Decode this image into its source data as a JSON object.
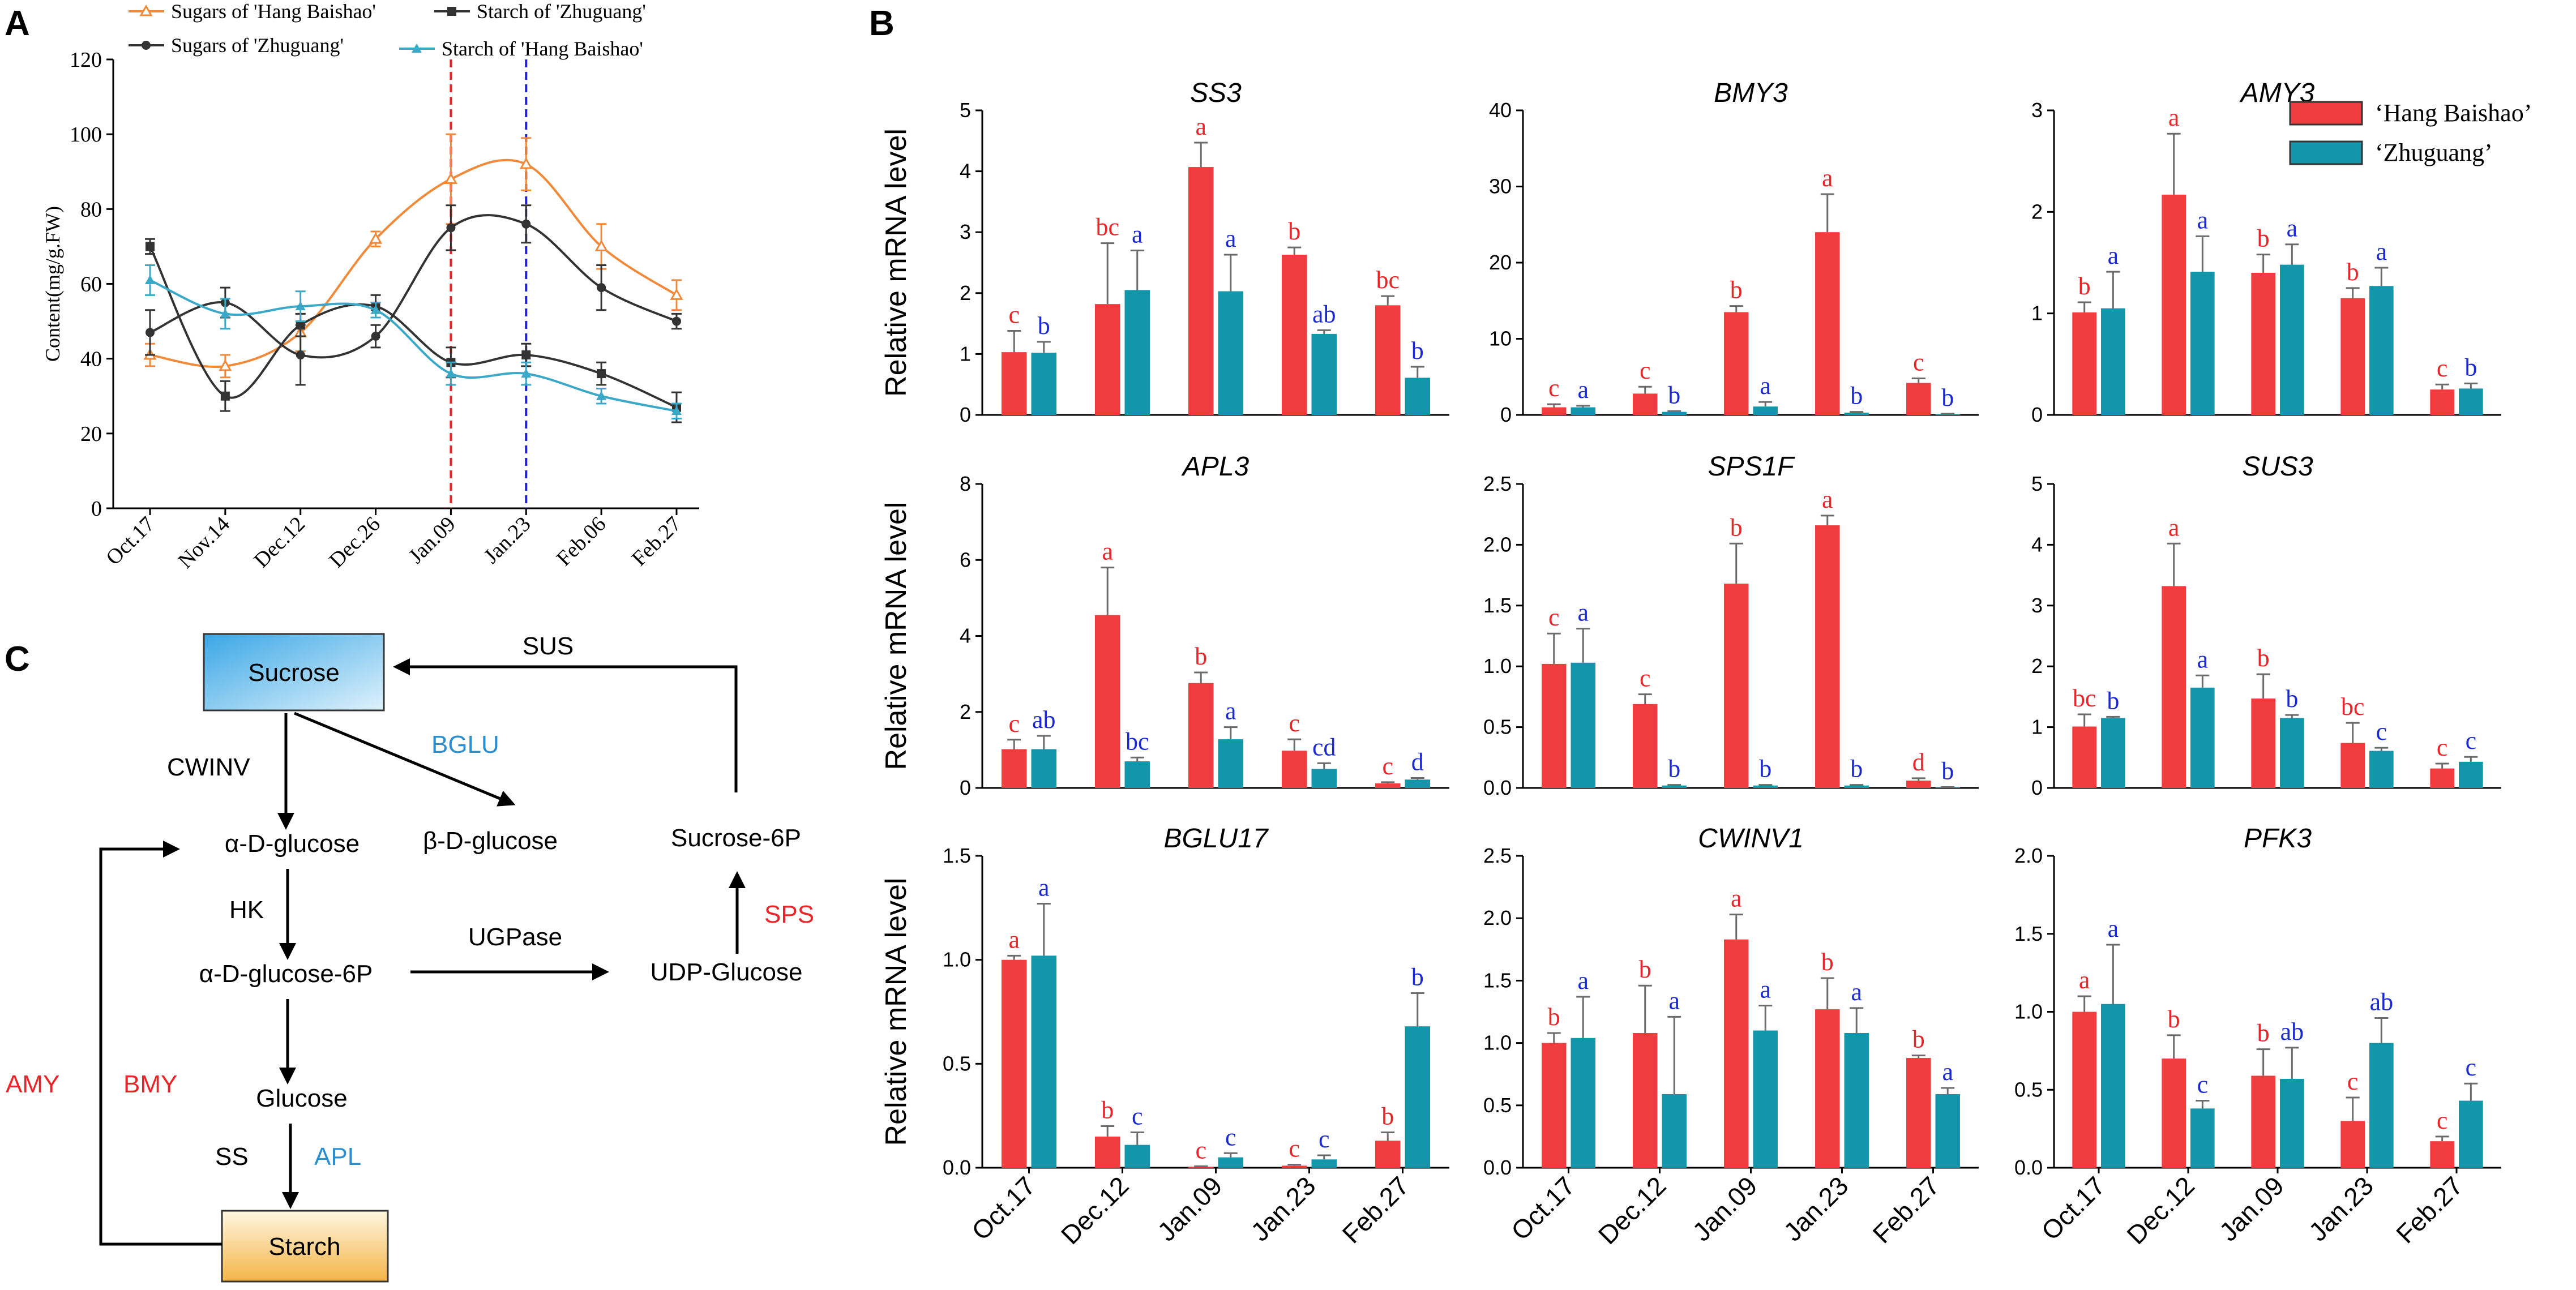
{
  "panels": {
    "A": "A",
    "B": "B",
    "C": "C"
  },
  "chart_data": [
    {
      "id": "A",
      "type": "line",
      "ylabel": "Content(mg/g.FW)",
      "xlabel": "",
      "categories": [
        "Oct.17",
        "Nov.14",
        "Dec.12",
        "Dec.26",
        "Jan.09",
        "Jan.23",
        "Feb.06",
        "Feb.27"
      ],
      "ylim": [
        0,
        120
      ],
      "yticks": [
        0,
        20,
        40,
        60,
        80,
        100,
        120
      ],
      "vlines": [
        {
          "at": "Jan.09",
          "color": "#e8262a"
        },
        {
          "at": "Jan.23",
          "color": "#2020d0"
        }
      ],
      "series": [
        {
          "name": "Sugars of 'Hang Baishao'",
          "color": "#f08a3a",
          "marker": "triangle-open",
          "values": [
            41,
            38,
            47,
            72,
            88,
            92,
            70,
            57
          ],
          "errors": [
            3,
            3,
            5,
            2,
            12,
            7,
            6,
            4
          ]
        },
        {
          "name": "Sugars of 'Zhuguang'",
          "color": "#333333",
          "marker": "circle",
          "values": [
            47,
            55,
            41,
            46,
            75,
            76,
            59,
            50
          ],
          "errors": [
            6,
            4,
            8,
            3,
            6,
            5,
            6,
            2
          ]
        },
        {
          "name": "Starch of 'Zhuguang'",
          "color": "#333333",
          "marker": "square",
          "values": [
            70,
            30,
            49,
            54,
            39,
            41,
            36,
            27
          ],
          "errors": [
            2,
            4,
            3,
            3,
            4,
            3,
            3,
            4
          ]
        },
        {
          "name": "Starch of 'Hang Baishao'",
          "color": "#3aa8c6",
          "marker": "triangle",
          "values": [
            61,
            52,
            54,
            53,
            36,
            36,
            30,
            26
          ],
          "errors": [
            4,
            4,
            4,
            2,
            3,
            3,
            2,
            2
          ]
        }
      ]
    },
    {
      "id": "B",
      "type": "bar",
      "ylabel": "Relative mRNA level",
      "categories": [
        "Oct.17",
        "Dec.12",
        "Jan.09",
        "Jan.23",
        "Feb.27"
      ],
      "legend": {
        "items": [
          {
            "name": "‘Hang Baishao’",
            "color": "#f03c3f"
          },
          {
            "name": "‘Zhuguang’",
            "color": "#1496aa"
          }
        ],
        "position": "top-right"
      },
      "series_colors": {
        "hang": "#f03c3f",
        "zhu": "#1496aa",
        "hang_letter": "#e8262a",
        "zhu_letter": "#1a2ad0"
      },
      "genes": [
        {
          "title": "SS3",
          "ylim": [
            0,
            5
          ],
          "yticks": [
            "0",
            "1",
            "2",
            "3",
            "4",
            "5"
          ],
          "hang": [
            1.03,
            1.82,
            4.07,
            2.63,
            1.8
          ],
          "hang_err": [
            0.35,
            1.0,
            0.4,
            0.12,
            0.15
          ],
          "hang_sig": [
            "c",
            "bc",
            "a",
            "b",
            "bc"
          ],
          "zhu": [
            1.02,
            2.05,
            2.03,
            1.33,
            0.61
          ],
          "zhu_err": [
            0.18,
            0.65,
            0.6,
            0.06,
            0.18
          ],
          "zhu_sig": [
            "b",
            "a",
            "a",
            "ab",
            "b"
          ]
        },
        {
          "title": "BMY3",
          "ylim": [
            0,
            40
          ],
          "yticks": [
            "0",
            "10",
            "20",
            "30",
            "40"
          ],
          "hang": [
            1.0,
            2.8,
            13.5,
            24.0,
            4.2
          ],
          "hang_err": [
            0.4,
            0.9,
            0.8,
            5.0,
            0.6
          ],
          "hang_sig": [
            "c",
            "c",
            "b",
            "a",
            "c"
          ],
          "zhu": [
            1.0,
            0.4,
            1.1,
            0.3,
            0.1
          ],
          "zhu_err": [
            0.2,
            0.1,
            0.6,
            0.1,
            0.05
          ],
          "zhu_sig": [
            "a",
            "b",
            "a",
            "b",
            "b"
          ]
        },
        {
          "title": "AMY3",
          "ylim": [
            0,
            3
          ],
          "yticks": [
            "0",
            "1",
            "2",
            "3"
          ],
          "hang": [
            1.01,
            2.17,
            1.4,
            1.15,
            0.25
          ],
          "hang_err": [
            0.1,
            0.6,
            0.18,
            0.1,
            0.05
          ],
          "hang_sig": [
            "b",
            "a",
            "b",
            "b",
            "c"
          ],
          "zhu": [
            1.05,
            1.41,
            1.48,
            1.27,
            0.26
          ],
          "zhu_err": [
            0.36,
            0.35,
            0.2,
            0.18,
            0.05
          ],
          "zhu_sig": [
            "a",
            "a",
            "a",
            "a",
            "b"
          ]
        },
        {
          "title": "APL3",
          "ylim": [
            0,
            8
          ],
          "yticks": [
            "0",
            "2",
            "4",
            "6",
            "8"
          ],
          "hang": [
            1.02,
            4.55,
            2.76,
            0.98,
            0.12
          ],
          "hang_err": [
            0.25,
            1.25,
            0.28,
            0.3,
            0.03
          ],
          "hang_sig": [
            "c",
            "a",
            "b",
            "c",
            "c"
          ],
          "zhu": [
            1.02,
            0.7,
            1.28,
            0.5,
            0.22
          ],
          "zhu_err": [
            0.35,
            0.1,
            0.32,
            0.15,
            0.04
          ],
          "zhu_sig": [
            "ab",
            "bc",
            "a",
            "cd",
            "d"
          ]
        },
        {
          "title": "SPS1F",
          "ylim": [
            0,
            2.5
          ],
          "yticks": [
            "0.0",
            "0.5",
            "1.0",
            "1.5",
            "2.0",
            "2.5"
          ],
          "hang": [
            1.02,
            0.69,
            1.68,
            2.16,
            0.06
          ],
          "hang_err": [
            0.25,
            0.08,
            0.33,
            0.08,
            0.02
          ],
          "hang_sig": [
            "c",
            "c",
            "b",
            "a",
            "d"
          ],
          "zhu": [
            1.03,
            0.02,
            0.02,
            0.02,
            0.005
          ],
          "zhu_err": [
            0.28,
            0.005,
            0.005,
            0.005,
            0.002
          ],
          "zhu_sig": [
            "a",
            "b",
            "b",
            "b",
            "b"
          ]
        },
        {
          "title": "SUS3",
          "ylim": [
            0,
            5
          ],
          "yticks": [
            "0",
            "1",
            "2",
            "3",
            "4",
            "5"
          ],
          "hang": [
            1.01,
            3.32,
            1.47,
            0.74,
            0.32
          ],
          "hang_err": [
            0.2,
            0.7,
            0.4,
            0.33,
            0.08
          ],
          "hang_sig": [
            "bc",
            "a",
            "b",
            "bc",
            "c"
          ],
          "zhu": [
            1.15,
            1.65,
            1.15,
            0.61,
            0.43
          ],
          "zhu_err": [
            0.02,
            0.2,
            0.05,
            0.05,
            0.08
          ],
          "zhu_sig": [
            "b",
            "a",
            "b",
            "c",
            "c"
          ]
        },
        {
          "title": "BGLU17",
          "ylim": [
            0,
            1.5
          ],
          "yticks": [
            "0.0",
            "0.5",
            "1.0",
            "1.5"
          ],
          "hang": [
            1.0,
            0.15,
            0.005,
            0.01,
            0.13
          ],
          "hang_err": [
            0.02,
            0.05,
            0.002,
            0.005,
            0.04
          ],
          "hang_sig": [
            "a",
            "b",
            "c",
            "c",
            "b"
          ],
          "zhu": [
            1.02,
            0.11,
            0.05,
            0.04,
            0.68
          ],
          "zhu_err": [
            0.25,
            0.06,
            0.02,
            0.02,
            0.16
          ],
          "zhu_sig": [
            "a",
            "c",
            "c",
            "c",
            "b"
          ]
        },
        {
          "title": "CWINV1",
          "ylim": [
            0,
            2.5
          ],
          "yticks": [
            "0.0",
            "0.5",
            "1.0",
            "1.5",
            "2.0",
            "2.5"
          ],
          "hang": [
            1.0,
            1.08,
            1.83,
            1.27,
            0.88
          ],
          "hang_err": [
            0.08,
            0.38,
            0.2,
            0.25,
            0.02
          ],
          "hang_sig": [
            "b",
            "b",
            "a",
            "b",
            "b"
          ],
          "zhu": [
            1.04,
            0.59,
            1.1,
            1.08,
            0.59
          ],
          "zhu_err": [
            0.33,
            0.62,
            0.2,
            0.2,
            0.05
          ],
          "zhu_sig": [
            "a",
            "a",
            "a",
            "a",
            "a"
          ]
        },
        {
          "title": "PFK3",
          "ylim": [
            0,
            2.0
          ],
          "yticks": [
            "0.0",
            "0.5",
            "1.0",
            "1.5",
            "2.0"
          ],
          "hang": [
            1.0,
            0.7,
            0.59,
            0.3,
            0.17
          ],
          "hang_err": [
            0.1,
            0.15,
            0.17,
            0.15,
            0.03
          ],
          "hang_sig": [
            "a",
            "b",
            "b",
            "c",
            "c"
          ],
          "zhu": [
            1.05,
            0.38,
            0.57,
            0.8,
            0.43
          ],
          "zhu_err": [
            0.38,
            0.05,
            0.2,
            0.16,
            0.11
          ],
          "zhu_sig": [
            "a",
            "c",
            "ab",
            "ab",
            "c"
          ]
        }
      ]
    }
  ],
  "diagram": {
    "nodes": {
      "sucrose": "Sucrose",
      "starch": "Starch",
      "alpha_glucose": "α-D-glucose",
      "beta_glucose": "β-D-glucose",
      "glucose_6p": "α-D-glucose-6P",
      "glucose": "Glucose",
      "sucrose_6p": "Sucrose-6P",
      "udp_glucose": "UDP-Glucose"
    },
    "labels": {
      "sus": "SUS",
      "cwinv": "CWINV",
      "bglu": "BGLU",
      "hk": "HK",
      "ugpase": "UGPase",
      "sps": "SPS",
      "ss": "SS",
      "apl": "APL",
      "amy": "AMY",
      "bmy": "BMY"
    },
    "colors": {
      "red": "#e8262a",
      "blue": "#2a8fd0",
      "black": "#111111",
      "sucrose_fill_top": "#3aa7e6",
      "sucrose_fill_bottom": "#d6eefb",
      "starch_fill_top": "#fff3d8",
      "starch_fill_bottom": "#f5b94a"
    }
  }
}
